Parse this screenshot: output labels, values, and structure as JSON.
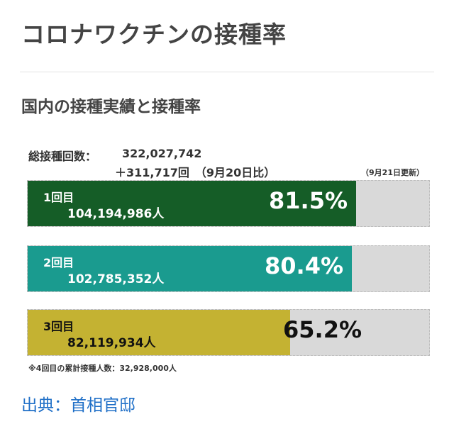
{
  "page": {
    "title": "コロナワクチンの接種率",
    "section_title": "国内の接種実績と接種率",
    "total_label": "総接種回数：",
    "total_value": "322,027,742",
    "total_diff": "＋311,717回",
    "total_diff_note": "（9月20日比）",
    "updated": "（9月21日更新）",
    "footnote": "※4回目の累計接種人数：32,928,000人",
    "source": "出典：首相官邸"
  },
  "chart_data": {
    "type": "bar",
    "orientation": "horizontal",
    "title": "国内の接種実績と接種率",
    "xlim": [
      0,
      100
    ],
    "unit": "%",
    "categories": [
      "1回目",
      "2回目",
      "3回目"
    ],
    "values": [
      81.5,
      80.4,
      65.2
    ],
    "value_labels": [
      "81.5%",
      "80.4%",
      "65.2%"
    ],
    "counts": [
      "104,194,986人",
      "102,785,352人",
      "82,119,934人"
    ],
    "colors": [
      "#155d27",
      "#1a9b8f",
      "#c4b232"
    ],
    "label_colors": [
      "#ffffff",
      "#ffffff",
      "#111111"
    ],
    "track_color": "#d9d9d9"
  }
}
